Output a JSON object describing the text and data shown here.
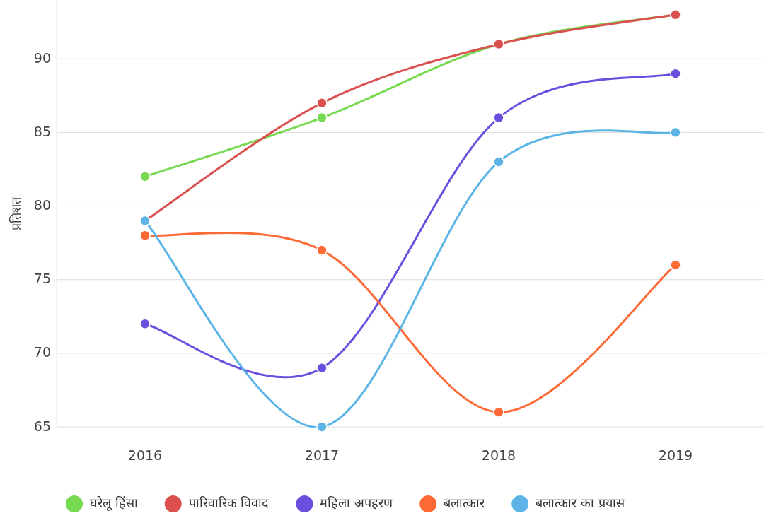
{
  "chart_data": {
    "type": "line",
    "ylabel": "प्रतिशत",
    "categories": [
      "2016",
      "2017",
      "2018",
      "2019"
    ],
    "series": [
      {
        "name": "घरेलू हिंसा",
        "color": "#77d94f",
        "values": [
          82,
          86,
          91,
          93
        ]
      },
      {
        "name": "पारिवारिक विवाद",
        "color": "#d9504f",
        "values": [
          79,
          87,
          91,
          93
        ]
      },
      {
        "name": "महिला अपहरण",
        "color": "#6a4fdf",
        "values": [
          72,
          69,
          86,
          89
        ]
      },
      {
        "name": "बलात्कार",
        "color": "#fd6a35",
        "values": [
          78,
          77,
          66,
          76
        ]
      },
      {
        "name": "बलात्कार का प्रयास",
        "color": "#5cb4e6",
        "values": [
          79,
          65,
          83,
          85
        ]
      }
    ],
    "ylim": [
      65,
      94
    ],
    "yticks": [
      65,
      70,
      75,
      80,
      85,
      90
    ],
    "grid": "y",
    "legend": "bottom",
    "marker": "circle",
    "line_style": "solid"
  }
}
